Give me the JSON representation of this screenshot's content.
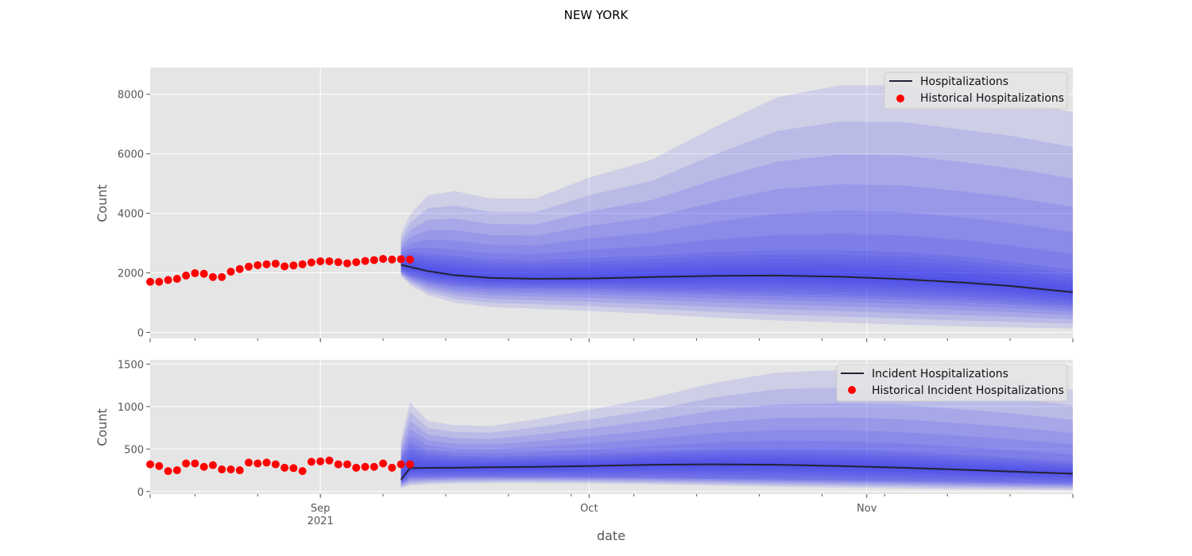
{
  "title": "NEW YORK",
  "colors": {
    "background": "#E5E5E5",
    "grid": "#FFFFFF",
    "band": "#2C2CF0",
    "median": "#222233",
    "historical": "#FF0000"
  },
  "x_axis": {
    "label": "date",
    "ticks": [
      {
        "date": "2021-09-01",
        "label": "Sep",
        "sublabel": "2021"
      },
      {
        "date": "2021-10-01",
        "label": "Oct",
        "sublabel": ""
      },
      {
        "date": "2021-11-01",
        "label": "Nov",
        "sublabel": ""
      }
    ],
    "range": [
      "2021-08-13",
      "2021-11-24"
    ]
  },
  "chart_data": [
    {
      "type": "line",
      "name": "top",
      "ylabel": "Count",
      "ylim": [
        -200,
        8900
      ],
      "yticks": [
        0,
        2000,
        4000,
        6000,
        8000
      ],
      "legend": [
        "Hospitalizations",
        "Historical Hospitalizations"
      ],
      "legend_position": "top-right",
      "historical": {
        "start": "2021-08-13",
        "values": [
          1700,
          1700,
          1760,
          1800,
          1910,
          1990,
          1970,
          1860,
          1860,
          2040,
          2130,
          2210,
          2260,
          2290,
          2310,
          2220,
          2250,
          2290,
          2350,
          2390,
          2390,
          2360,
          2320,
          2360,
          2400,
          2430,
          2470,
          2450,
          2460,
          2450
        ]
      },
      "forecast": {
        "x": [
          "2021-09-10",
          "2021-09-11",
          "2021-09-13",
          "2021-09-16",
          "2021-09-20",
          "2021-09-25",
          "2021-10-01",
          "2021-10-08",
          "2021-10-15",
          "2021-10-22",
          "2021-10-29",
          "2021-11-05",
          "2021-11-12",
          "2021-11-17",
          "2021-11-24"
        ],
        "median": [
          2270,
          2200,
          2060,
          1920,
          1830,
          1800,
          1810,
          1860,
          1900,
          1910,
          1870,
          1790,
          1670,
          1560,
          1350
        ],
        "upper_95": [
          3300,
          3950,
          4600,
          4750,
          4500,
          4500,
          5200,
          5800,
          6900,
          7900,
          8300,
          8300,
          8000,
          7800,
          7400
        ],
        "upper_50": [
          2600,
          2700,
          2650,
          2560,
          2450,
          2420,
          2500,
          2580,
          2700,
          2760,
          2760,
          2700,
          2550,
          2380,
          2100
        ],
        "lower_50": [
          2050,
          1900,
          1720,
          1580,
          1500,
          1480,
          1460,
          1400,
          1350,
          1300,
          1250,
          1180,
          1100,
          1020,
          880
        ],
        "lower_95": [
          1900,
          1600,
          1250,
          1000,
          850,
          800,
          720,
          620,
          500,
          400,
          330,
          260,
          200,
          170,
          130
        ]
      }
    },
    {
      "type": "line",
      "name": "bottom",
      "ylabel": "Count",
      "ylim": [
        -30,
        1550
      ],
      "yticks": [
        0,
        500,
        1000,
        1500
      ],
      "legend": [
        "Incident Hospitalizations",
        "Historical Incident Hospitalizations"
      ],
      "legend_position": "top-right",
      "historical": {
        "start": "2021-08-13",
        "values": [
          320,
          300,
          240,
          250,
          330,
          330,
          290,
          310,
          260,
          260,
          250,
          340,
          330,
          340,
          320,
          280,
          275,
          240,
          350,
          355,
          365,
          320,
          320,
          280,
          290,
          290,
          330,
          280,
          320,
          320
        ]
      },
      "forecast": {
        "x": [
          "2021-09-10",
          "2021-09-11",
          "2021-09-13",
          "2021-09-16",
          "2021-09-20",
          "2021-09-25",
          "2021-10-01",
          "2021-10-08",
          "2021-10-15",
          "2021-10-22",
          "2021-10-29",
          "2021-11-05",
          "2021-11-12",
          "2021-11-17",
          "2021-11-24"
        ],
        "median": [
          140,
          275,
          278,
          280,
          285,
          290,
          300,
          315,
          320,
          315,
          300,
          280,
          255,
          235,
          210
        ],
        "upper_95": [
          600,
          1050,
          830,
          780,
          770,
          850,
          960,
          1100,
          1280,
          1400,
          1430,
          1420,
          1350,
          1300,
          1200
        ],
        "upper_50": [
          380,
          530,
          450,
          420,
          410,
          420,
          440,
          470,
          500,
          510,
          500,
          470,
          430,
          400,
          350
        ],
        "lower_50": [
          100,
          170,
          170,
          175,
          175,
          175,
          170,
          165,
          155,
          145,
          135,
          125,
          115,
          105,
          95
        ],
        "lower_95": [
          40,
          70,
          85,
          95,
          100,
          100,
          95,
          85,
          70,
          55,
          45,
          35,
          25,
          20,
          15
        ]
      }
    }
  ]
}
